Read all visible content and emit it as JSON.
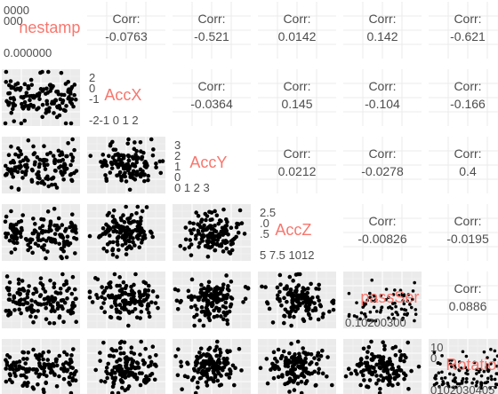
{
  "chart_data": {
    "type": "scatter",
    "layout": "pairs-matrix",
    "variables": [
      "Timestamp",
      "AccX",
      "AccY",
      "AccZ",
      "CompassSensor",
      "Rotation"
    ],
    "corr_label": "Corr:",
    "upper_correlations": [
      {
        "row": 0,
        "col": 1,
        "value": "-0.0763"
      },
      {
        "row": 0,
        "col": 2,
        "value": "-0.521"
      },
      {
        "row": 0,
        "col": 3,
        "value": "0.0142"
      },
      {
        "row": 0,
        "col": 4,
        "value": "0.142"
      },
      {
        "row": 0,
        "col": 5,
        "value": "-0.621"
      },
      {
        "row": 1,
        "col": 2,
        "value": "-0.0364"
      },
      {
        "row": 1,
        "col": 3,
        "value": "0.145"
      },
      {
        "row": 1,
        "col": 4,
        "value": "-0.104"
      },
      {
        "row": 1,
        "col": 5,
        "value": "-0.166"
      },
      {
        "row": 2,
        "col": 3,
        "value": "0.0212"
      },
      {
        "row": 2,
        "col": 4,
        "value": "-0.0278"
      },
      {
        "row": 2,
        "col": 5,
        "value": "0.4"
      },
      {
        "row": 3,
        "col": 4,
        "value": "-0.00826"
      },
      {
        "row": 3,
        "col": 5,
        "value": "-0.0195"
      },
      {
        "row": 4,
        "col": 5,
        "value": "0.0886"
      }
    ],
    "diagonal": [
      {
        "label": "nestamp",
        "ticks": [
          "0000",
          "000",
          "0.000000"
        ]
      },
      {
        "label": "AccX",
        "ticks": [
          "2",
          "0",
          "-1",
          "-2-1 0 1 2"
        ]
      },
      {
        "label": "AccY",
        "ticks": [
          "3",
          "2",
          "1",
          "0",
          "0 1 2 3"
        ]
      },
      {
        "label": "AccZ",
        "ticks": [
          "2.5",
          ".0",
          ".5",
          "5 7.5 1012"
        ]
      },
      {
        "label": "passSer",
        "ticks": [
          "0.10200300"
        ]
      },
      {
        "label": "Rotation",
        "ticks": [
          "10",
          "0",
          "0102030405"
        ]
      }
    ],
    "grid": true,
    "point_color": "#000000",
    "label_color": "#f8766d"
  }
}
